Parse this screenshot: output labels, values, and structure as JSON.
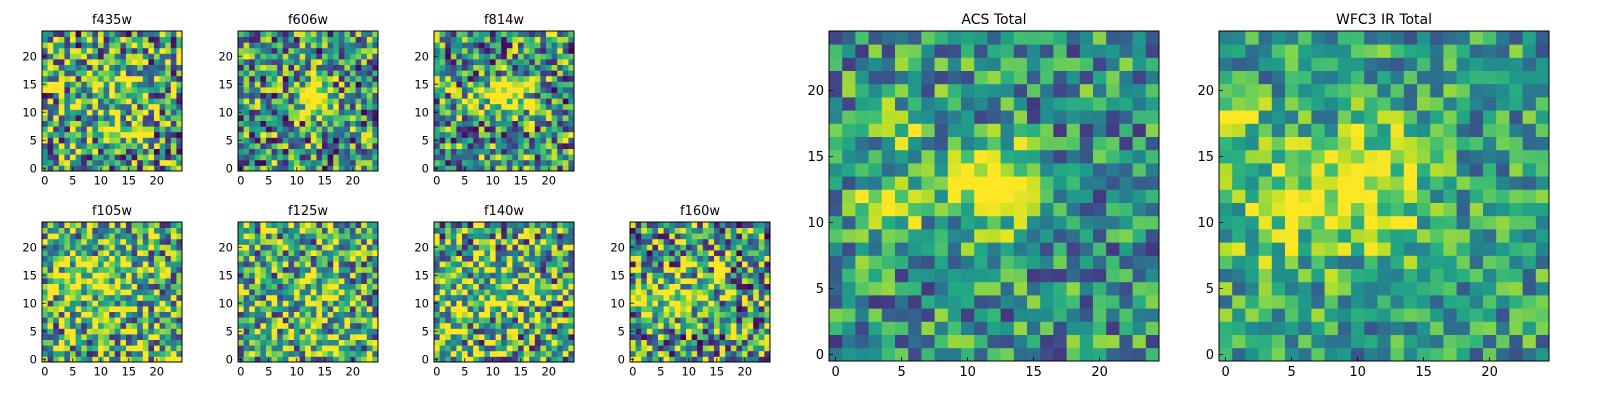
{
  "chart_data": [
    {
      "type": "heatmap",
      "title": "f435w",
      "colormap": "viridis",
      "xlim": [
        -0.5,
        24.5
      ],
      "ylim": [
        -0.5,
        24.5
      ],
      "xticks": [
        "0",
        "5",
        "10",
        "15",
        "20"
      ],
      "yticks": [
        "0",
        "5",
        "10",
        "15",
        "20"
      ],
      "values_note": "pixel intensities not readable; source is a noisy 25x25 cutout with a faint bright blob near (13,13)"
    },
    {
      "type": "heatmap",
      "title": "f606w",
      "colormap": "viridis",
      "xlim": [
        -0.5,
        24.5
      ],
      "ylim": [
        -0.5,
        24.5
      ],
      "xticks": [
        "0",
        "5",
        "10",
        "15",
        "20"
      ],
      "yticks": [
        "0",
        "5",
        "10",
        "15",
        "20"
      ]
    },
    {
      "type": "heatmap",
      "title": "f814w",
      "colormap": "viridis",
      "xlim": [
        -0.5,
        24.5
      ],
      "ylim": [
        -0.5,
        24.5
      ],
      "xticks": [
        "0",
        "5",
        "10",
        "15",
        "20"
      ],
      "yticks": [
        "0",
        "5",
        "10",
        "15",
        "20"
      ]
    },
    {
      "type": "heatmap",
      "title": "f105w",
      "colormap": "viridis",
      "xlim": [
        -0.5,
        24.5
      ],
      "ylim": [
        -0.5,
        24.5
      ],
      "xticks": [
        "0",
        "5",
        "10",
        "15",
        "20"
      ],
      "yticks": [
        "0",
        "5",
        "10",
        "15",
        "20"
      ]
    },
    {
      "type": "heatmap",
      "title": "f125w",
      "colormap": "viridis",
      "xlim": [
        -0.5,
        24.5
      ],
      "ylim": [
        -0.5,
        24.5
      ],
      "xticks": [
        "0",
        "5",
        "10",
        "15",
        "20"
      ],
      "yticks": [
        "0",
        "5",
        "10",
        "15",
        "20"
      ]
    },
    {
      "type": "heatmap",
      "title": "f140w",
      "colormap": "viridis",
      "xlim": [
        -0.5,
        24.5
      ],
      "ylim": [
        -0.5,
        24.5
      ],
      "xticks": [
        "0",
        "5",
        "10",
        "15",
        "20"
      ],
      "yticks": [
        "0",
        "5",
        "10",
        "15",
        "20"
      ]
    },
    {
      "type": "heatmap",
      "title": "f160w",
      "colormap": "viridis",
      "xlim": [
        -0.5,
        24.5
      ],
      "ylim": [
        -0.5,
        24.5
      ],
      "xticks": [
        "0",
        "5",
        "10",
        "15",
        "20"
      ],
      "yticks": [
        "0",
        "5",
        "10",
        "15",
        "20"
      ]
    },
    {
      "type": "heatmap",
      "title": "ACS Total",
      "colormap": "viridis",
      "xlim": [
        -0.5,
        24.5
      ],
      "ylim": [
        -0.5,
        24.5
      ],
      "xticks": [
        "0",
        "5",
        "10",
        "15",
        "20"
      ],
      "yticks": [
        "0",
        "5",
        "10",
        "15",
        "20"
      ]
    },
    {
      "type": "heatmap",
      "title": "WFC3 IR Total",
      "colormap": "viridis",
      "xlim": [
        -0.5,
        24.5
      ],
      "ylim": [
        -0.5,
        24.5
      ],
      "xticks": [
        "0",
        "5",
        "10",
        "15",
        "20"
      ],
      "yticks": [
        "0",
        "5",
        "10",
        "15",
        "20"
      ]
    }
  ]
}
